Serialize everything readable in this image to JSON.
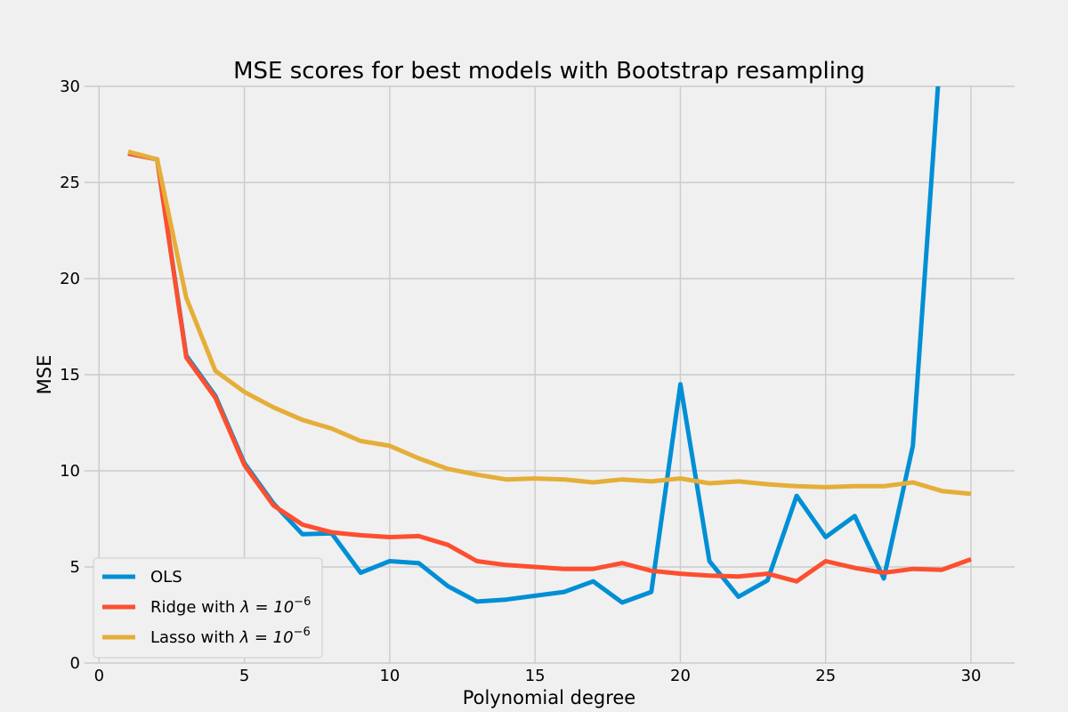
{
  "chart_data": {
    "type": "line",
    "title": "MSE scores for best models with Bootstrap resampling",
    "xlabel": "Polynomial degree",
    "ylabel": "MSE",
    "xlim": [
      -0.5,
      31.5
    ],
    "ylim": [
      0,
      30
    ],
    "x_ticks": [
      0,
      5,
      10,
      15,
      20,
      25,
      30
    ],
    "y_ticks": [
      0,
      5,
      10,
      15,
      20,
      25,
      30
    ],
    "grid": true,
    "legend_position": "lower-left",
    "x": [
      1,
      2,
      3,
      4,
      5,
      6,
      7,
      8,
      9,
      10,
      11,
      12,
      13,
      14,
      15,
      16,
      17,
      18,
      19,
      20,
      21,
      22,
      23,
      24,
      25,
      26,
      27,
      28,
      29,
      30
    ],
    "series": [
      {
        "label": "OLS",
        "color": "#008fd5",
        "values": [
          26.5,
          26.2,
          16.0,
          13.9,
          10.4,
          8.3,
          6.7,
          6.75,
          4.7,
          5.3,
          5.2,
          4.0,
          3.2,
          3.3,
          3.5,
          3.7,
          4.25,
          3.15,
          3.7,
          14.5,
          5.3,
          3.45,
          4.3,
          8.7,
          6.55,
          7.65,
          4.4,
          11.3,
          33.0,
          null
        ]
      },
      {
        "label": "Ridge with λ = 10⁻⁶",
        "label_text": "Ridge with ",
        "label_math": "λ = 10",
        "label_exp": "−6",
        "color": "#fc4f30",
        "values": [
          26.5,
          26.2,
          15.9,
          13.8,
          10.3,
          8.2,
          7.2,
          6.8,
          6.65,
          6.55,
          6.6,
          6.15,
          5.3,
          5.1,
          5.0,
          4.9,
          4.9,
          5.2,
          4.8,
          4.65,
          4.55,
          4.5,
          4.65,
          4.25,
          5.3,
          4.95,
          4.7,
          4.9,
          4.85,
          5.4
        ]
      },
      {
        "label": "Lasso with λ = 10⁻⁶",
        "label_text": "Lasso with ",
        "label_math": "λ = 10",
        "label_exp": "−6",
        "color": "#e5ae38",
        "values": [
          26.6,
          26.2,
          19.0,
          15.2,
          14.1,
          13.3,
          12.65,
          12.2,
          11.55,
          11.3,
          10.65,
          10.1,
          9.8,
          9.55,
          9.6,
          9.55,
          9.4,
          9.55,
          9.45,
          9.6,
          9.35,
          9.45,
          9.3,
          9.2,
          9.15,
          9.2,
          9.2,
          9.4,
          8.95,
          8.8
        ]
      }
    ]
  }
}
